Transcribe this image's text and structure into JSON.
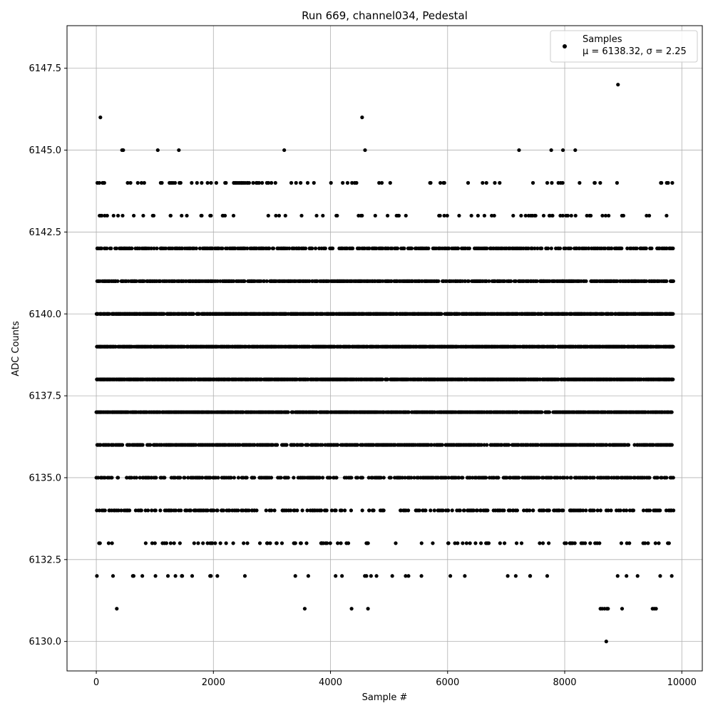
{
  "chart_data": {
    "type": "scatter",
    "title": "Run 669, channel034, Pedestal",
    "xlabel": "Sample #",
    "ylabel": "ADC Counts",
    "xlim": [
      -500,
      10350
    ],
    "ylim": [
      6129.1,
      6148.8
    ],
    "xticks": [
      0,
      2000,
      4000,
      6000,
      8000,
      10000
    ],
    "yticks": [
      6130.0,
      6132.5,
      6135.0,
      6137.5,
      6140.0,
      6142.5,
      6145.0,
      6147.5
    ],
    "xtick_labels": [
      "0",
      "2000",
      "4000",
      "6000",
      "8000",
      "10000"
    ],
    "ytick_labels": [
      "6130.0",
      "6132.5",
      "6135.0",
      "6137.5",
      "6140.0",
      "6142.5",
      "6145.0",
      "6147.5"
    ],
    "grid": true,
    "legend_position": "top-right",
    "marker_color": "#000000",
    "series": [
      {
        "name": "Samples",
        "stats_label": "μ = 6138.32, σ = 2.25",
        "x_range": [
          0,
          9850
        ],
        "level_density": [
          {
            "y": 6142,
            "density": 0.4
          },
          {
            "y": 6141,
            "density": 0.6
          },
          {
            "y": 6140,
            "density": 0.72
          },
          {
            "y": 6139,
            "density": 0.8
          },
          {
            "y": 6138,
            "density": 0.8
          },
          {
            "y": 6137,
            "density": 0.72
          },
          {
            "y": 6136,
            "density": 0.55
          },
          {
            "y": 6135,
            "density": 0.35
          },
          {
            "y": 6134,
            "density": 0.24
          },
          {
            "y": 6143,
            "density": 0.09
          },
          {
            "y": 6133,
            "density": 0.08
          },
          {
            "y": 6144,
            "density": 0.05
          },
          {
            "y": 6132,
            "density": 0.03
          }
        ],
        "points": [
          [
            70,
            6146
          ],
          [
            4540,
            6146
          ],
          [
            8910,
            6147
          ],
          [
            440,
            6145
          ],
          [
            460,
            6145
          ],
          [
            1050,
            6145
          ],
          [
            1410,
            6145
          ],
          [
            3210,
            6145
          ],
          [
            4590,
            6145
          ],
          [
            7220,
            6145
          ],
          [
            7770,
            6145
          ],
          [
            7970,
            6145
          ],
          [
            8180,
            6145
          ],
          [
            1100,
            6144
          ],
          [
            1120,
            6144
          ],
          [
            1250,
            6144
          ],
          [
            1280,
            6144
          ],
          [
            1310,
            6144
          ],
          [
            1420,
            6144
          ],
          [
            1440,
            6144
          ],
          [
            1720,
            6144
          ],
          [
            1800,
            6144
          ],
          [
            1900,
            6144
          ],
          [
            1960,
            6144
          ],
          [
            2050,
            6144
          ],
          [
            2200,
            6144
          ],
          [
            2350,
            6144
          ],
          [
            2390,
            6144
          ],
          [
            2420,
            6144
          ],
          [
            2450,
            6144
          ],
          [
            2480,
            6144
          ],
          [
            2510,
            6144
          ],
          [
            2540,
            6144
          ],
          [
            2580,
            6144
          ],
          [
            2610,
            6144
          ],
          [
            2750,
            6144
          ],
          [
            2780,
            6144
          ],
          [
            2990,
            6144
          ],
          [
            3330,
            6144
          ],
          [
            3610,
            6144
          ],
          [
            4830,
            6144
          ],
          [
            5020,
            6144
          ],
          [
            5700,
            6144
          ],
          [
            5930,
            6144
          ],
          [
            6350,
            6144
          ],
          [
            7780,
            6144
          ],
          [
            350,
            6131
          ],
          [
            3560,
            6131
          ],
          [
            4360,
            6131
          ],
          [
            4640,
            6131
          ],
          [
            8610,
            6131
          ],
          [
            8640,
            6131
          ],
          [
            8680,
            6131
          ],
          [
            8720,
            6131
          ],
          [
            8740,
            6131
          ],
          [
            8980,
            6131
          ],
          [
            9500,
            6131
          ],
          [
            9530,
            6131
          ],
          [
            9560,
            6131
          ],
          [
            8710,
            6130
          ]
        ]
      }
    ]
  }
}
